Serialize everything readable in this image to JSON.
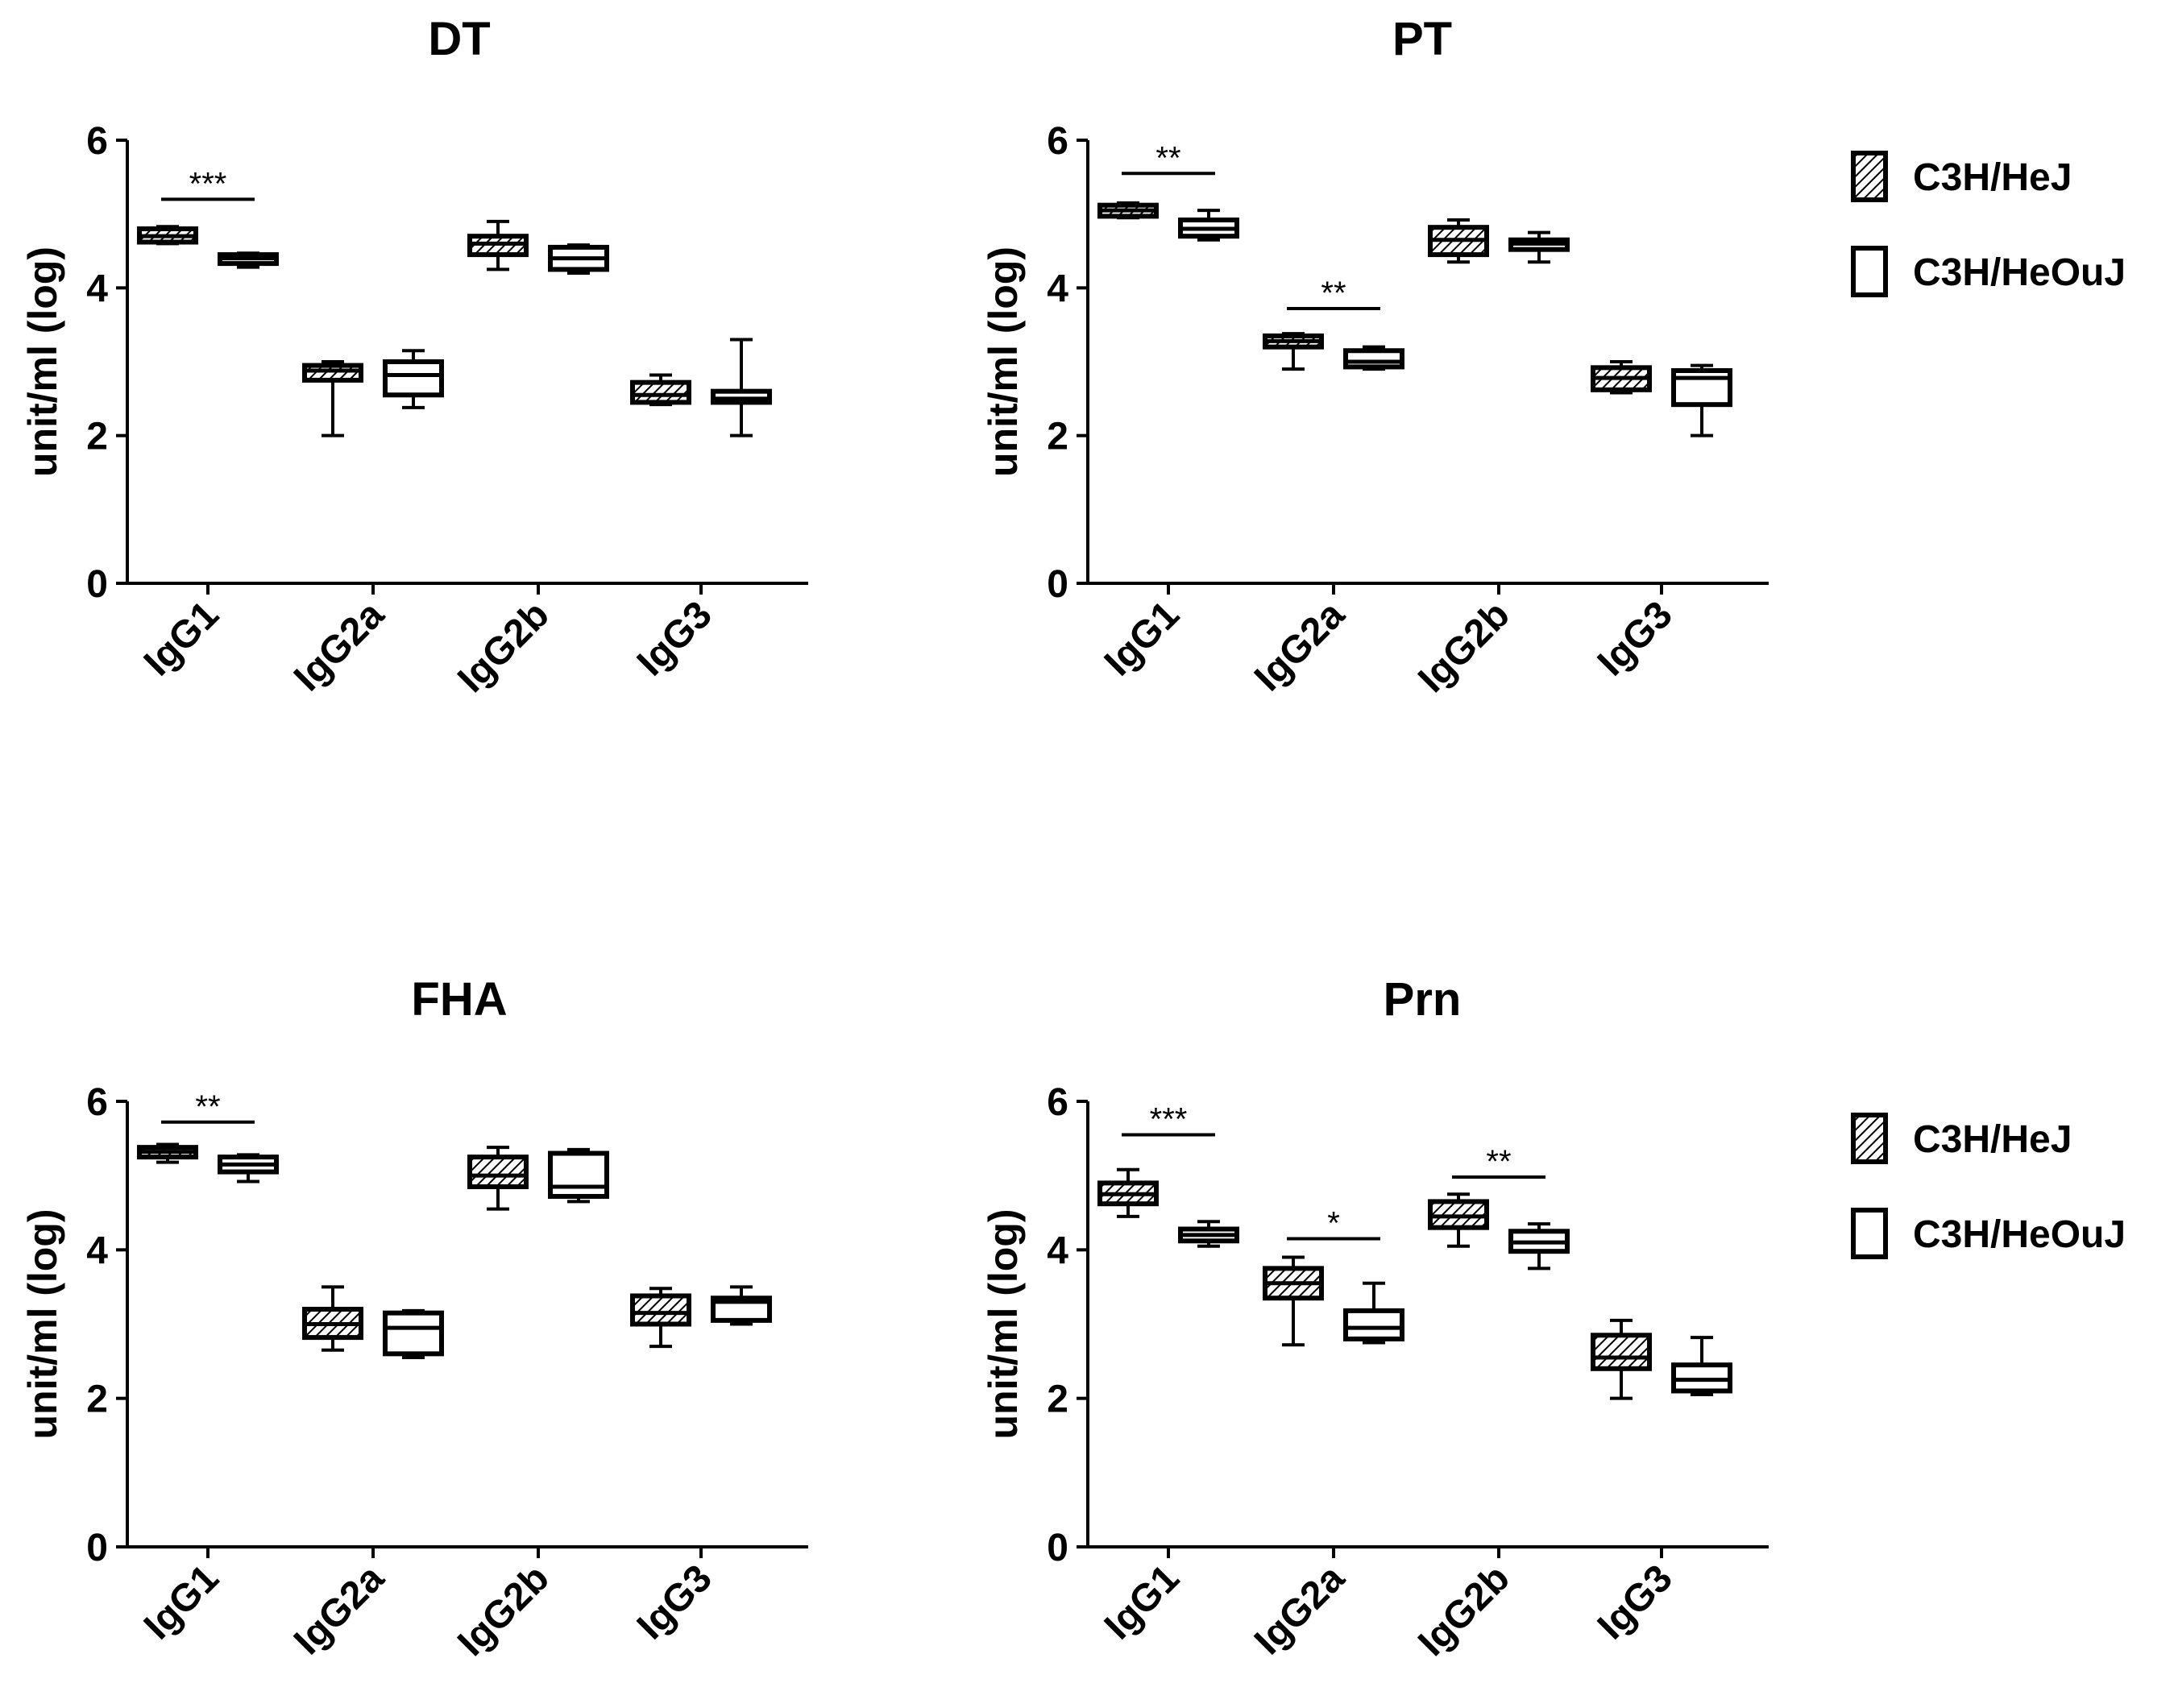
{
  "chart_data": [
    {
      "type": "box",
      "title": "DT",
      "ylabel": "unit/ml (log)",
      "ylim": [
        0,
        6
      ],
      "yticks": [
        0,
        2,
        4,
        6
      ],
      "categories": [
        "IgG1",
        "IgG2a",
        "IgG2b",
        "IgG3"
      ],
      "series": [
        {
          "name": "C3H/HeJ",
          "pattern": "hatched",
          "boxes": [
            {
              "min": 4.6,
              "q1": 4.62,
              "median": 4.7,
              "q3": 4.8,
              "max": 4.83
            },
            {
              "min": 2.0,
              "q1": 2.75,
              "median": 2.88,
              "q3": 2.95,
              "max": 3.0
            },
            {
              "min": 4.25,
              "q1": 4.45,
              "median": 4.6,
              "q3": 4.7,
              "max": 4.9
            },
            {
              "min": 2.42,
              "q1": 2.45,
              "median": 2.55,
              "q3": 2.72,
              "max": 2.82
            }
          ]
        },
        {
          "name": "C3H/HeOuJ",
          "pattern": "open",
          "boxes": [
            {
              "min": 4.28,
              "q1": 4.33,
              "median": 4.4,
              "q3": 4.45,
              "max": 4.47
            },
            {
              "min": 2.38,
              "q1": 2.55,
              "median": 2.82,
              "q3": 3.0,
              "max": 3.15
            },
            {
              "min": 4.2,
              "q1": 4.25,
              "median": 4.4,
              "q3": 4.55,
              "max": 4.58
            },
            {
              "min": 2.0,
              "q1": 2.45,
              "median": 2.5,
              "q3": 2.6,
              "max": 3.3
            }
          ]
        }
      ],
      "significance": [
        {
          "category": "IgG1",
          "label": "***",
          "y": 5.2
        }
      ]
    },
    {
      "type": "box",
      "title": "PT",
      "ylabel": "unit/ml (log)",
      "ylim": [
        0,
        6
      ],
      "yticks": [
        0,
        2,
        4,
        6
      ],
      "categories": [
        "IgG1",
        "IgG2a",
        "IgG2b",
        "IgG3"
      ],
      "series": [
        {
          "name": "C3H/HeJ",
          "pattern": "hatched",
          "boxes": [
            {
              "min": 4.95,
              "q1": 4.97,
              "median": 5.05,
              "q3": 5.12,
              "max": 5.15
            },
            {
              "min": 2.9,
              "q1": 3.2,
              "median": 3.28,
              "q3": 3.35,
              "max": 3.38
            },
            {
              "min": 4.35,
              "q1": 4.45,
              "median": 4.65,
              "q3": 4.82,
              "max": 4.92
            },
            {
              "min": 2.58,
              "q1": 2.62,
              "median": 2.78,
              "q3": 2.92,
              "max": 3.0
            }
          ]
        },
        {
          "name": "C3H/HeOuJ",
          "pattern": "open",
          "boxes": [
            {
              "min": 4.65,
              "q1": 4.7,
              "median": 4.8,
              "q3": 4.92,
              "max": 5.05
            },
            {
              "min": 2.9,
              "q1": 2.93,
              "median": 3.0,
              "q3": 3.15,
              "max": 3.2
            },
            {
              "min": 4.35,
              "q1": 4.52,
              "median": 4.6,
              "q3": 4.65,
              "max": 4.75
            },
            {
              "min": 2.0,
              "q1": 2.42,
              "median": 2.78,
              "q3": 2.88,
              "max": 2.95
            }
          ]
        }
      ],
      "significance": [
        {
          "category": "IgG1",
          "label": "**",
          "y": 5.55
        },
        {
          "category": "IgG2a",
          "label": "**",
          "y": 3.72
        }
      ]
    },
    {
      "type": "box",
      "title": "FHA",
      "ylabel": "unit/ml (log)",
      "ylim": [
        0,
        6
      ],
      "yticks": [
        0,
        2,
        4,
        6
      ],
      "categories": [
        "IgG1",
        "IgG2a",
        "IgG2b",
        "IgG3"
      ],
      "series": [
        {
          "name": "C3H/HeJ",
          "pattern": "hatched",
          "boxes": [
            {
              "min": 5.18,
              "q1": 5.25,
              "median": 5.32,
              "q3": 5.38,
              "max": 5.42
            },
            {
              "min": 2.65,
              "q1": 2.82,
              "median": 3.0,
              "q3": 3.2,
              "max": 3.5
            },
            {
              "min": 4.55,
              "q1": 4.85,
              "median": 5.0,
              "q3": 5.25,
              "max": 5.38
            },
            {
              "min": 2.7,
              "q1": 3.0,
              "median": 3.15,
              "q3": 3.38,
              "max": 3.48
            }
          ]
        },
        {
          "name": "C3H/HeOuJ",
          "pattern": "open",
          "boxes": [
            {
              "min": 4.92,
              "q1": 5.05,
              "median": 5.15,
              "q3": 5.25,
              "max": 5.28
            },
            {
              "min": 2.55,
              "q1": 2.6,
              "median": 2.95,
              "q3": 3.15,
              "max": 3.18
            },
            {
              "min": 4.65,
              "q1": 4.72,
              "median": 4.85,
              "q3": 5.3,
              "max": 5.35
            },
            {
              "min": 3.0,
              "q1": 3.05,
              "median": 3.3,
              "q3": 3.35,
              "max": 3.5
            }
          ]
        }
      ],
      "significance": [
        {
          "category": "IgG1",
          "label": "**",
          "y": 5.72
        }
      ]
    },
    {
      "type": "box",
      "title": "Prn",
      "ylabel": "unit/ml (log)",
      "ylim": [
        0,
        6
      ],
      "yticks": [
        0,
        2,
        4,
        6
      ],
      "categories": [
        "IgG1",
        "IgG2a",
        "IgG2b",
        "IgG3"
      ],
      "series": [
        {
          "name": "C3H/HeJ",
          "pattern": "hatched",
          "boxes": [
            {
              "min": 4.45,
              "q1": 4.62,
              "median": 4.75,
              "q3": 4.9,
              "max": 5.08
            },
            {
              "min": 2.72,
              "q1": 3.35,
              "median": 3.55,
              "q3": 3.75,
              "max": 3.9
            },
            {
              "min": 4.05,
              "q1": 4.3,
              "median": 4.45,
              "q3": 4.65,
              "max": 4.75
            },
            {
              "min": 2.0,
              "q1": 2.4,
              "median": 2.55,
              "q3": 2.85,
              "max": 3.05
            }
          ]
        },
        {
          "name": "C3H/HeOuJ",
          "pattern": "open",
          "boxes": [
            {
              "min": 4.05,
              "q1": 4.12,
              "median": 4.2,
              "q3": 4.28,
              "max": 4.38
            },
            {
              "min": 2.75,
              "q1": 2.8,
              "median": 2.95,
              "q3": 3.18,
              "max": 3.55
            },
            {
              "min": 3.75,
              "q1": 3.98,
              "median": 4.1,
              "q3": 4.25,
              "max": 4.35
            },
            {
              "min": 2.05,
              "q1": 2.1,
              "median": 2.25,
              "q3": 2.45,
              "max": 2.82
            }
          ]
        }
      ],
      "significance": [
        {
          "category": "IgG1",
          "label": "***",
          "y": 5.55
        },
        {
          "category": "IgG2a",
          "label": "*",
          "y": 4.15
        },
        {
          "category": "IgG2b",
          "label": "**",
          "y": 4.98
        }
      ]
    }
  ],
  "legend": {
    "items": [
      {
        "label": "C3H/HeJ",
        "pattern": "hatched"
      },
      {
        "label": "C3H/HeOuJ",
        "pattern": "open"
      }
    ],
    "placement": "right"
  },
  "colors": {
    "ink": "#000000",
    "background": "#ffffff"
  }
}
